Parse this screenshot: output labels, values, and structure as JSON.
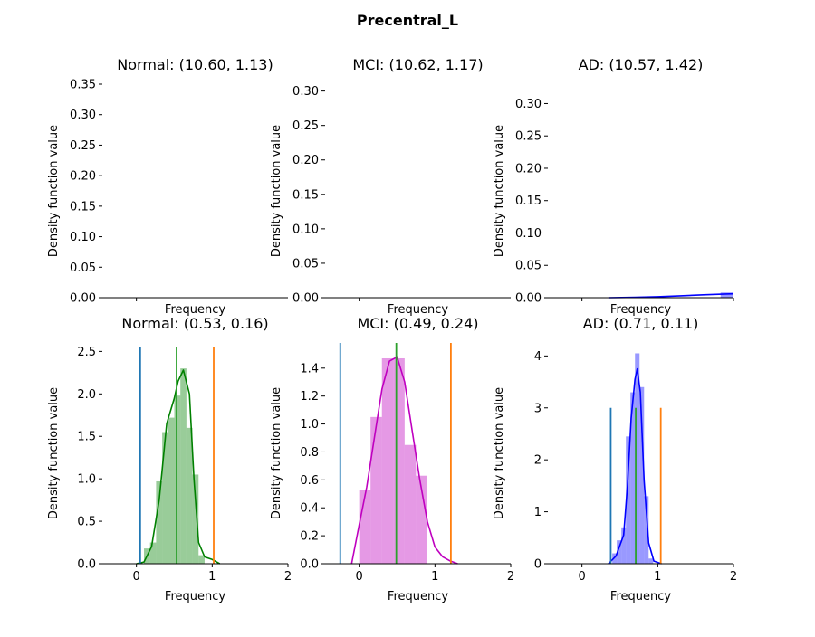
{
  "suptitle": "Precentral_L",
  "chart_data": [
    {
      "type": "histogram+kde",
      "title": "Normal: (10.60, 1.13)",
      "xlabel": "Frequency",
      "ylabel": "Density function value",
      "xlim": [
        -0.45,
        2.0
      ],
      "ylim": [
        0,
        0.35
      ],
      "yticks": [
        0.0,
        0.05,
        0.1,
        0.15,
        0.2,
        0.25,
        0.3,
        0.35
      ],
      "ytick_labels": [
        "0.00",
        "0.05",
        "0.10",
        "0.15",
        "0.20",
        "0.25",
        "0.30",
        "0.35"
      ],
      "xticks": [
        0
      ],
      "xtick_labels": [],
      "color": "#008000",
      "bins": [],
      "kde": [],
      "vlines": []
    },
    {
      "type": "histogram+kde",
      "title": "MCI: (10.62, 1.17)",
      "xlabel": "Frequency",
      "ylabel": "Density function value",
      "xlim": [
        -0.45,
        2.0
      ],
      "ylim": [
        0,
        0.31
      ],
      "yticks": [
        0.0,
        0.05,
        0.1,
        0.15,
        0.2,
        0.25,
        0.3
      ],
      "ytick_labels": [
        "0.00",
        "0.05",
        "0.10",
        "0.15",
        "0.20",
        "0.25",
        "0.30"
      ],
      "xticks": [
        0
      ],
      "xtick_labels": [],
      "color": "#bf00bf",
      "bins": [],
      "kde": [],
      "vlines": []
    },
    {
      "type": "histogram+kde",
      "title": "AD: (10.57, 1.42)",
      "xlabel": "Frequency",
      "ylabel": "Density function value",
      "xlim": [
        -0.45,
        2.0
      ],
      "ylim": [
        0,
        0.33
      ],
      "yticks": [
        0.0,
        0.05,
        0.1,
        0.15,
        0.2,
        0.25,
        0.3
      ],
      "ytick_labels": [
        "0.00",
        "0.05",
        "0.10",
        "0.15",
        "0.20",
        "0.25",
        "0.30"
      ],
      "xticks": [
        0,
        2
      ],
      "xtick_labels": [],
      "color": "#0000ff",
      "bins": [
        [
          1.83,
          2.0,
          0.008
        ]
      ],
      "kde": [
        [
          0.35,
          0.0
        ],
        [
          0.7,
          0.0005
        ],
        [
          1.0,
          0.0015
        ],
        [
          1.3,
          0.003
        ],
        [
          1.6,
          0.0045
        ],
        [
          1.85,
          0.0055
        ],
        [
          2.0,
          0.006
        ]
      ],
      "vlines": []
    },
    {
      "type": "histogram+kde",
      "title": "Normal: (0.53, 0.16)",
      "xlabel": "Frequency",
      "ylabel": "Density function value",
      "xlim": [
        -0.45,
        2.0
      ],
      "ylim": [
        0,
        2.6
      ],
      "yticks": [
        0.0,
        0.5,
        1.0,
        1.5,
        2.0,
        2.5
      ],
      "ytick_labels": [
        "0.0",
        "0.5",
        "1.0",
        "1.5",
        "2.0",
        "2.5"
      ],
      "xticks": [
        0,
        1,
        2
      ],
      "xtick_labels": [
        "0",
        "1",
        "2"
      ],
      "color": "#008000",
      "bins": [
        [
          0.1,
          0.18,
          0.18
        ],
        [
          0.18,
          0.26,
          0.25
        ],
        [
          0.26,
          0.34,
          0.97
        ],
        [
          0.34,
          0.42,
          1.55
        ],
        [
          0.42,
          0.5,
          1.72
        ],
        [
          0.5,
          0.58,
          1.98
        ],
        [
          0.58,
          0.66,
          2.3
        ],
        [
          0.66,
          0.74,
          1.6
        ],
        [
          0.74,
          0.82,
          1.05
        ],
        [
          0.82,
          0.9,
          0.1
        ]
      ],
      "kde": [
        [
          0.0,
          0.0
        ],
        [
          0.1,
          0.02
        ],
        [
          0.2,
          0.2
        ],
        [
          0.3,
          0.75
        ],
        [
          0.4,
          1.65
        ],
        [
          0.5,
          1.95
        ],
        [
          0.55,
          2.15
        ],
        [
          0.62,
          2.28
        ],
        [
          0.7,
          2.0
        ],
        [
          0.76,
          1.0
        ],
        [
          0.82,
          0.25
        ],
        [
          0.9,
          0.08
        ],
        [
          1.0,
          0.05
        ],
        [
          1.1,
          0.0
        ]
      ],
      "vlines": [
        [
          0.05,
          2.55,
          "#1f77b4"
        ],
        [
          0.53,
          2.55,
          "#2ca02c"
        ],
        [
          1.02,
          2.55,
          "#ff7f0e"
        ]
      ]
    },
    {
      "type": "histogram+kde",
      "title": "MCI: (0.49, 0.24)",
      "xlabel": "Frequency",
      "ylabel": "Density function value",
      "xlim": [
        -0.45,
        2.0
      ],
      "ylim": [
        0,
        1.58
      ],
      "yticks": [
        0.0,
        0.2,
        0.4,
        0.6,
        0.8,
        1.0,
        1.2,
        1.4
      ],
      "ytick_labels": [
        "0.0",
        "0.2",
        "0.4",
        "0.6",
        "0.8",
        "1.0",
        "1.2",
        "1.4"
      ],
      "xticks": [
        0,
        1,
        2
      ],
      "xtick_labels": [
        "0",
        "1",
        "2"
      ],
      "color": "#bf00bf",
      "bins": [
        [
          0.0,
          0.15,
          0.53
        ],
        [
          0.15,
          0.3,
          1.05
        ],
        [
          0.3,
          0.45,
          1.47
        ],
        [
          0.45,
          0.6,
          1.47
        ],
        [
          0.6,
          0.75,
          0.85
        ],
        [
          0.75,
          0.9,
          0.63
        ]
      ],
      "kde": [
        [
          -0.1,
          0.0
        ],
        [
          0.0,
          0.28
        ],
        [
          0.1,
          0.55
        ],
        [
          0.2,
          0.9
        ],
        [
          0.3,
          1.25
        ],
        [
          0.4,
          1.45
        ],
        [
          0.5,
          1.48
        ],
        [
          0.6,
          1.3
        ],
        [
          0.7,
          0.95
        ],
        [
          0.8,
          0.6
        ],
        [
          0.9,
          0.3
        ],
        [
          1.0,
          0.12
        ],
        [
          1.1,
          0.05
        ],
        [
          1.2,
          0.02
        ],
        [
          1.3,
          0.0
        ]
      ],
      "vlines": [
        [
          -0.25,
          1.58,
          "#1f77b4"
        ],
        [
          0.49,
          1.58,
          "#2ca02c"
        ],
        [
          1.21,
          1.58,
          "#ff7f0e"
        ]
      ]
    },
    {
      "type": "histogram+kde",
      "title": "AD: (0.71, 0.11)",
      "xlabel": "Frequency",
      "ylabel": "Density function value",
      "xlim": [
        -0.45,
        2.0
      ],
      "ylim": [
        0,
        4.25
      ],
      "yticks": [
        0,
        1,
        2,
        3,
        4
      ],
      "ytick_labels": [
        "0",
        "1",
        "2",
        "3",
        "4"
      ],
      "xticks": [
        0,
        1,
        2
      ],
      "xtick_labels": [
        "0",
        "1",
        "2"
      ],
      "color": "#0000ff",
      "bins": [
        [
          0.4,
          0.46,
          0.2
        ],
        [
          0.46,
          0.52,
          0.45
        ],
        [
          0.52,
          0.58,
          0.7
        ],
        [
          0.58,
          0.64,
          2.45
        ],
        [
          0.64,
          0.7,
          3.3
        ],
        [
          0.7,
          0.76,
          4.05
        ],
        [
          0.76,
          0.82,
          3.4
        ],
        [
          0.82,
          0.88,
          1.3
        ],
        [
          0.88,
          0.94,
          0.1
        ]
      ],
      "kde": [
        [
          0.35,
          0.0
        ],
        [
          0.45,
          0.15
        ],
        [
          0.55,
          0.55
        ],
        [
          0.6,
          1.5
        ],
        [
          0.65,
          2.8
        ],
        [
          0.7,
          3.55
        ],
        [
          0.73,
          3.75
        ],
        [
          0.77,
          3.3
        ],
        [
          0.82,
          1.6
        ],
        [
          0.88,
          0.4
        ],
        [
          0.95,
          0.05
        ],
        [
          1.05,
          0.0
        ]
      ],
      "vlines": [
        [
          0.38,
          3.0,
          "#1f77b4"
        ],
        [
          0.71,
          3.0,
          "#2ca02c"
        ],
        [
          1.04,
          3.0,
          "#ff7f0e"
        ]
      ]
    }
  ]
}
